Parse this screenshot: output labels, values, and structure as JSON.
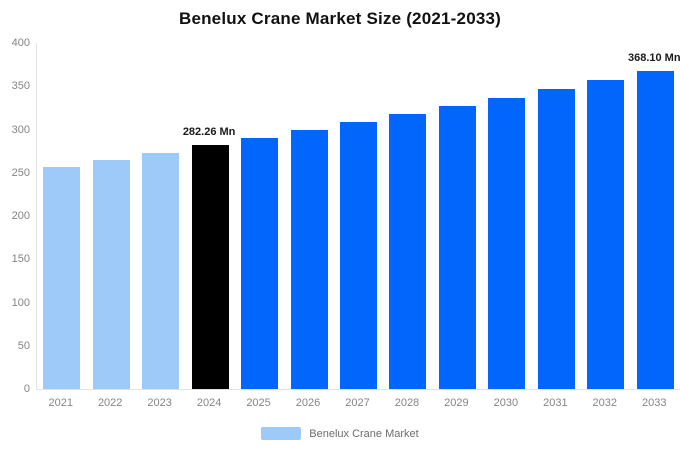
{
  "title": "Benelux Crane Market Size (2021-2033)",
  "colors": {
    "historical_bar": "#9ECAFA",
    "current_bar": "#000000",
    "forecast_bar": "#0266FC",
    "axis_line": "#e3e3e3",
    "tick_text": "#858585",
    "annotation_text": "#1a1a1a",
    "legend_text": "#6d6d6d"
  },
  "legend": {
    "label": "Benelux Crane Market",
    "swatch_color": "#9ECAFA"
  },
  "chart_data": {
    "type": "bar",
    "title": "Benelux Crane Market Size (2021-2033)",
    "xlabel": "",
    "ylabel": "",
    "ylim": [
      0,
      400
    ],
    "yticks": [
      0,
      50,
      100,
      150,
      200,
      250,
      300,
      350,
      400
    ],
    "grid": false,
    "legend_position": "bottom",
    "categories": [
      "2021",
      "2022",
      "2023",
      "2024",
      "2025",
      "2026",
      "2027",
      "2028",
      "2029",
      "2030",
      "2031",
      "2032",
      "2033"
    ],
    "series": [
      {
        "name": "Benelux Crane Market",
        "values": [
          257,
          265,
          273,
          282.26,
          290.7,
          299.4,
          308.4,
          317.6,
          327.1,
          336.9,
          347.0,
          357.4,
          368.1
        ]
      }
    ],
    "bar_colors": [
      "#9ECAFA",
      "#9ECAFA",
      "#9ECAFA",
      "#000000",
      "#0266FC",
      "#0266FC",
      "#0266FC",
      "#0266FC",
      "#0266FC",
      "#0266FC",
      "#0266FC",
      "#0266FC",
      "#0266FC"
    ],
    "annotations": [
      {
        "category": "2024",
        "text": "282.26 Mn"
      },
      {
        "category": "2033",
        "text": "368.10 Mn"
      }
    ]
  }
}
